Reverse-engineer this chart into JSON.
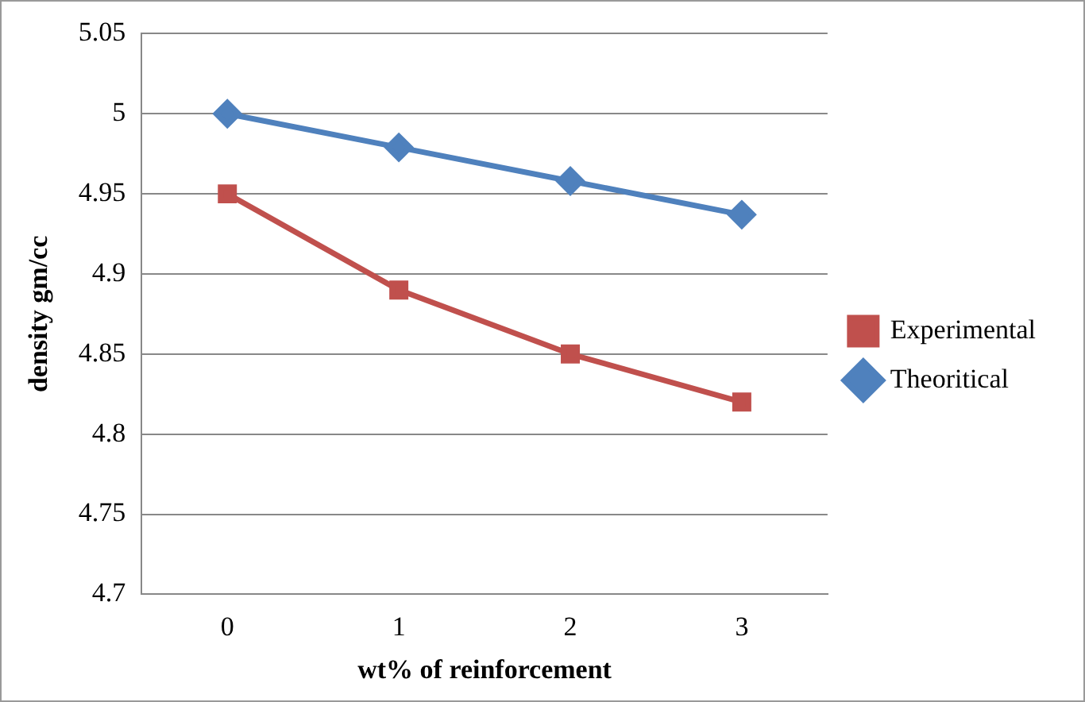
{
  "chart_data": {
    "type": "line",
    "xlabel": "wt% of reinforcement",
    "ylabel": "density gm/cc",
    "categories": [
      "0",
      "1",
      "2",
      "3"
    ],
    "series": [
      {
        "name": "Experimental",
        "color": "#c0504d",
        "marker": "square",
        "values": [
          4.95,
          4.89,
          4.85,
          4.82
        ]
      },
      {
        "name": "Theoritical",
        "color": "#4f81bd",
        "marker": "diamond",
        "values": [
          5.0,
          4.979,
          4.958,
          4.937
        ]
      }
    ],
    "ylim": [
      4.7,
      5.05
    ],
    "yticks": [
      4.7,
      4.75,
      4.8,
      4.85,
      4.9,
      4.95,
      5,
      5.05
    ],
    "grid": "y",
    "legend": "right"
  }
}
